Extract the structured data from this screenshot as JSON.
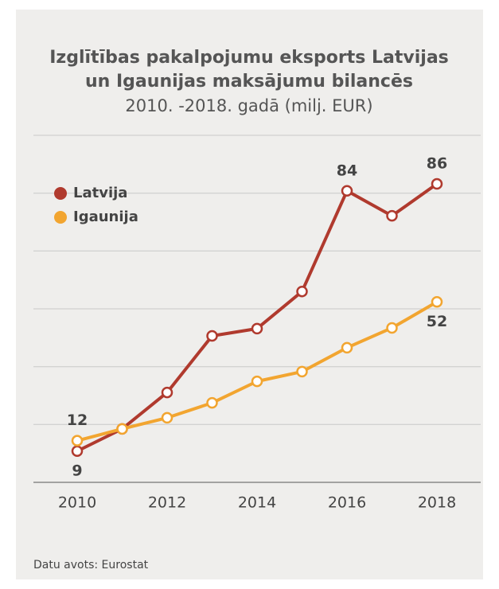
{
  "chart_data": {
    "type": "line",
    "title": [
      "Izglītības pakalpojumu eksports Latvijas",
      "un Igaunijas maksājumu bilancēs"
    ],
    "subtitle": "2010. -2018. gadā (milj. EUR)",
    "source": "Datu avots: Eurostat",
    "x": [
      2010,
      2011,
      2012,
      2013,
      2014,
      2015,
      2016,
      2017,
      2018
    ],
    "xlim": [
      2010,
      2018
    ],
    "xticks": [
      2010,
      2012,
      2014,
      2016,
      2018
    ],
    "ylim": [
      0,
      100
    ],
    "yticks": [
      0,
      16.7,
      33.3,
      50,
      66.7,
      83.3,
      100
    ],
    "grid": true,
    "legend": "top-left",
    "series": [
      {
        "name": "Latvija",
        "color": "#b03a2e",
        "values": [
          9,
          15.4,
          25.9,
          42.2,
          44.3,
          55,
          84,
          76.8,
          86
        ],
        "value_labels": [
          "9",
          null,
          null,
          null,
          null,
          null,
          "84",
          null,
          "86"
        ]
      },
      {
        "name": "Igaunija",
        "color": "#f2a530",
        "values": [
          12,
          15.4,
          18.6,
          22.9,
          29.1,
          31.9,
          38.8,
          44.5,
          52
        ],
        "value_labels": [
          "12",
          null,
          null,
          null,
          null,
          null,
          null,
          null,
          "52"
        ]
      }
    ]
  }
}
